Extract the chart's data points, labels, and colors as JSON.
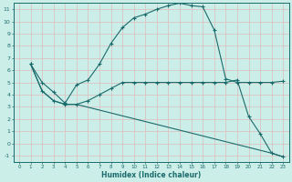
{
  "title": "",
  "xlabel": "Humidex (Indice chaleur)",
  "bg_color": "#cceee8",
  "grid_color": "#ddbbbb",
  "line_color": "#1a6b6b",
  "xlim": [
    -0.5,
    23.5
  ],
  "ylim": [
    -1.5,
    11.5
  ],
  "xticks": [
    0,
    1,
    2,
    3,
    4,
    5,
    6,
    7,
    8,
    9,
    10,
    11,
    12,
    13,
    14,
    15,
    16,
    17,
    18,
    19,
    20,
    21,
    22,
    23
  ],
  "yticks": [
    -1,
    0,
    1,
    2,
    3,
    4,
    5,
    6,
    7,
    8,
    9,
    10,
    11
  ],
  "curves": [
    {
      "x": [
        1,
        2,
        3,
        4,
        5,
        6,
        7,
        8,
        9,
        10,
        11,
        12,
        13,
        14,
        15,
        16,
        17,
        18,
        19,
        20,
        21,
        22,
        23
      ],
      "y": [
        6.5,
        5.0,
        4.2,
        3.3,
        4.8,
        5.2,
        6.5,
        8.2,
        9.5,
        10.3,
        10.6,
        11.0,
        11.3,
        11.5,
        11.3,
        11.2,
        9.3,
        5.3,
        5.0,
        5.0,
        5.0,
        5.0,
        5.1
      ],
      "marker": true
    },
    {
      "x": [
        1,
        2,
        3,
        4,
        5,
        6,
        7,
        8,
        9,
        10,
        11,
        12,
        13,
        14,
        15,
        16,
        17,
        18,
        19,
        20,
        21,
        22,
        23
      ],
      "y": [
        6.5,
        4.3,
        3.5,
        3.2,
        3.2,
        3.5,
        4.0,
        4.5,
        5.0,
        5.0,
        5.0,
        5.0,
        5.0,
        5.0,
        5.0,
        5.0,
        5.0,
        5.0,
        5.2,
        2.2,
        0.8,
        -0.8,
        -1.1
      ],
      "marker": true
    },
    {
      "x": [
        1,
        2,
        3,
        4,
        5,
        22,
        23
      ],
      "y": [
        6.5,
        4.3,
        3.5,
        3.2,
        3.2,
        -0.8,
        -1.1
      ],
      "marker": false
    }
  ]
}
